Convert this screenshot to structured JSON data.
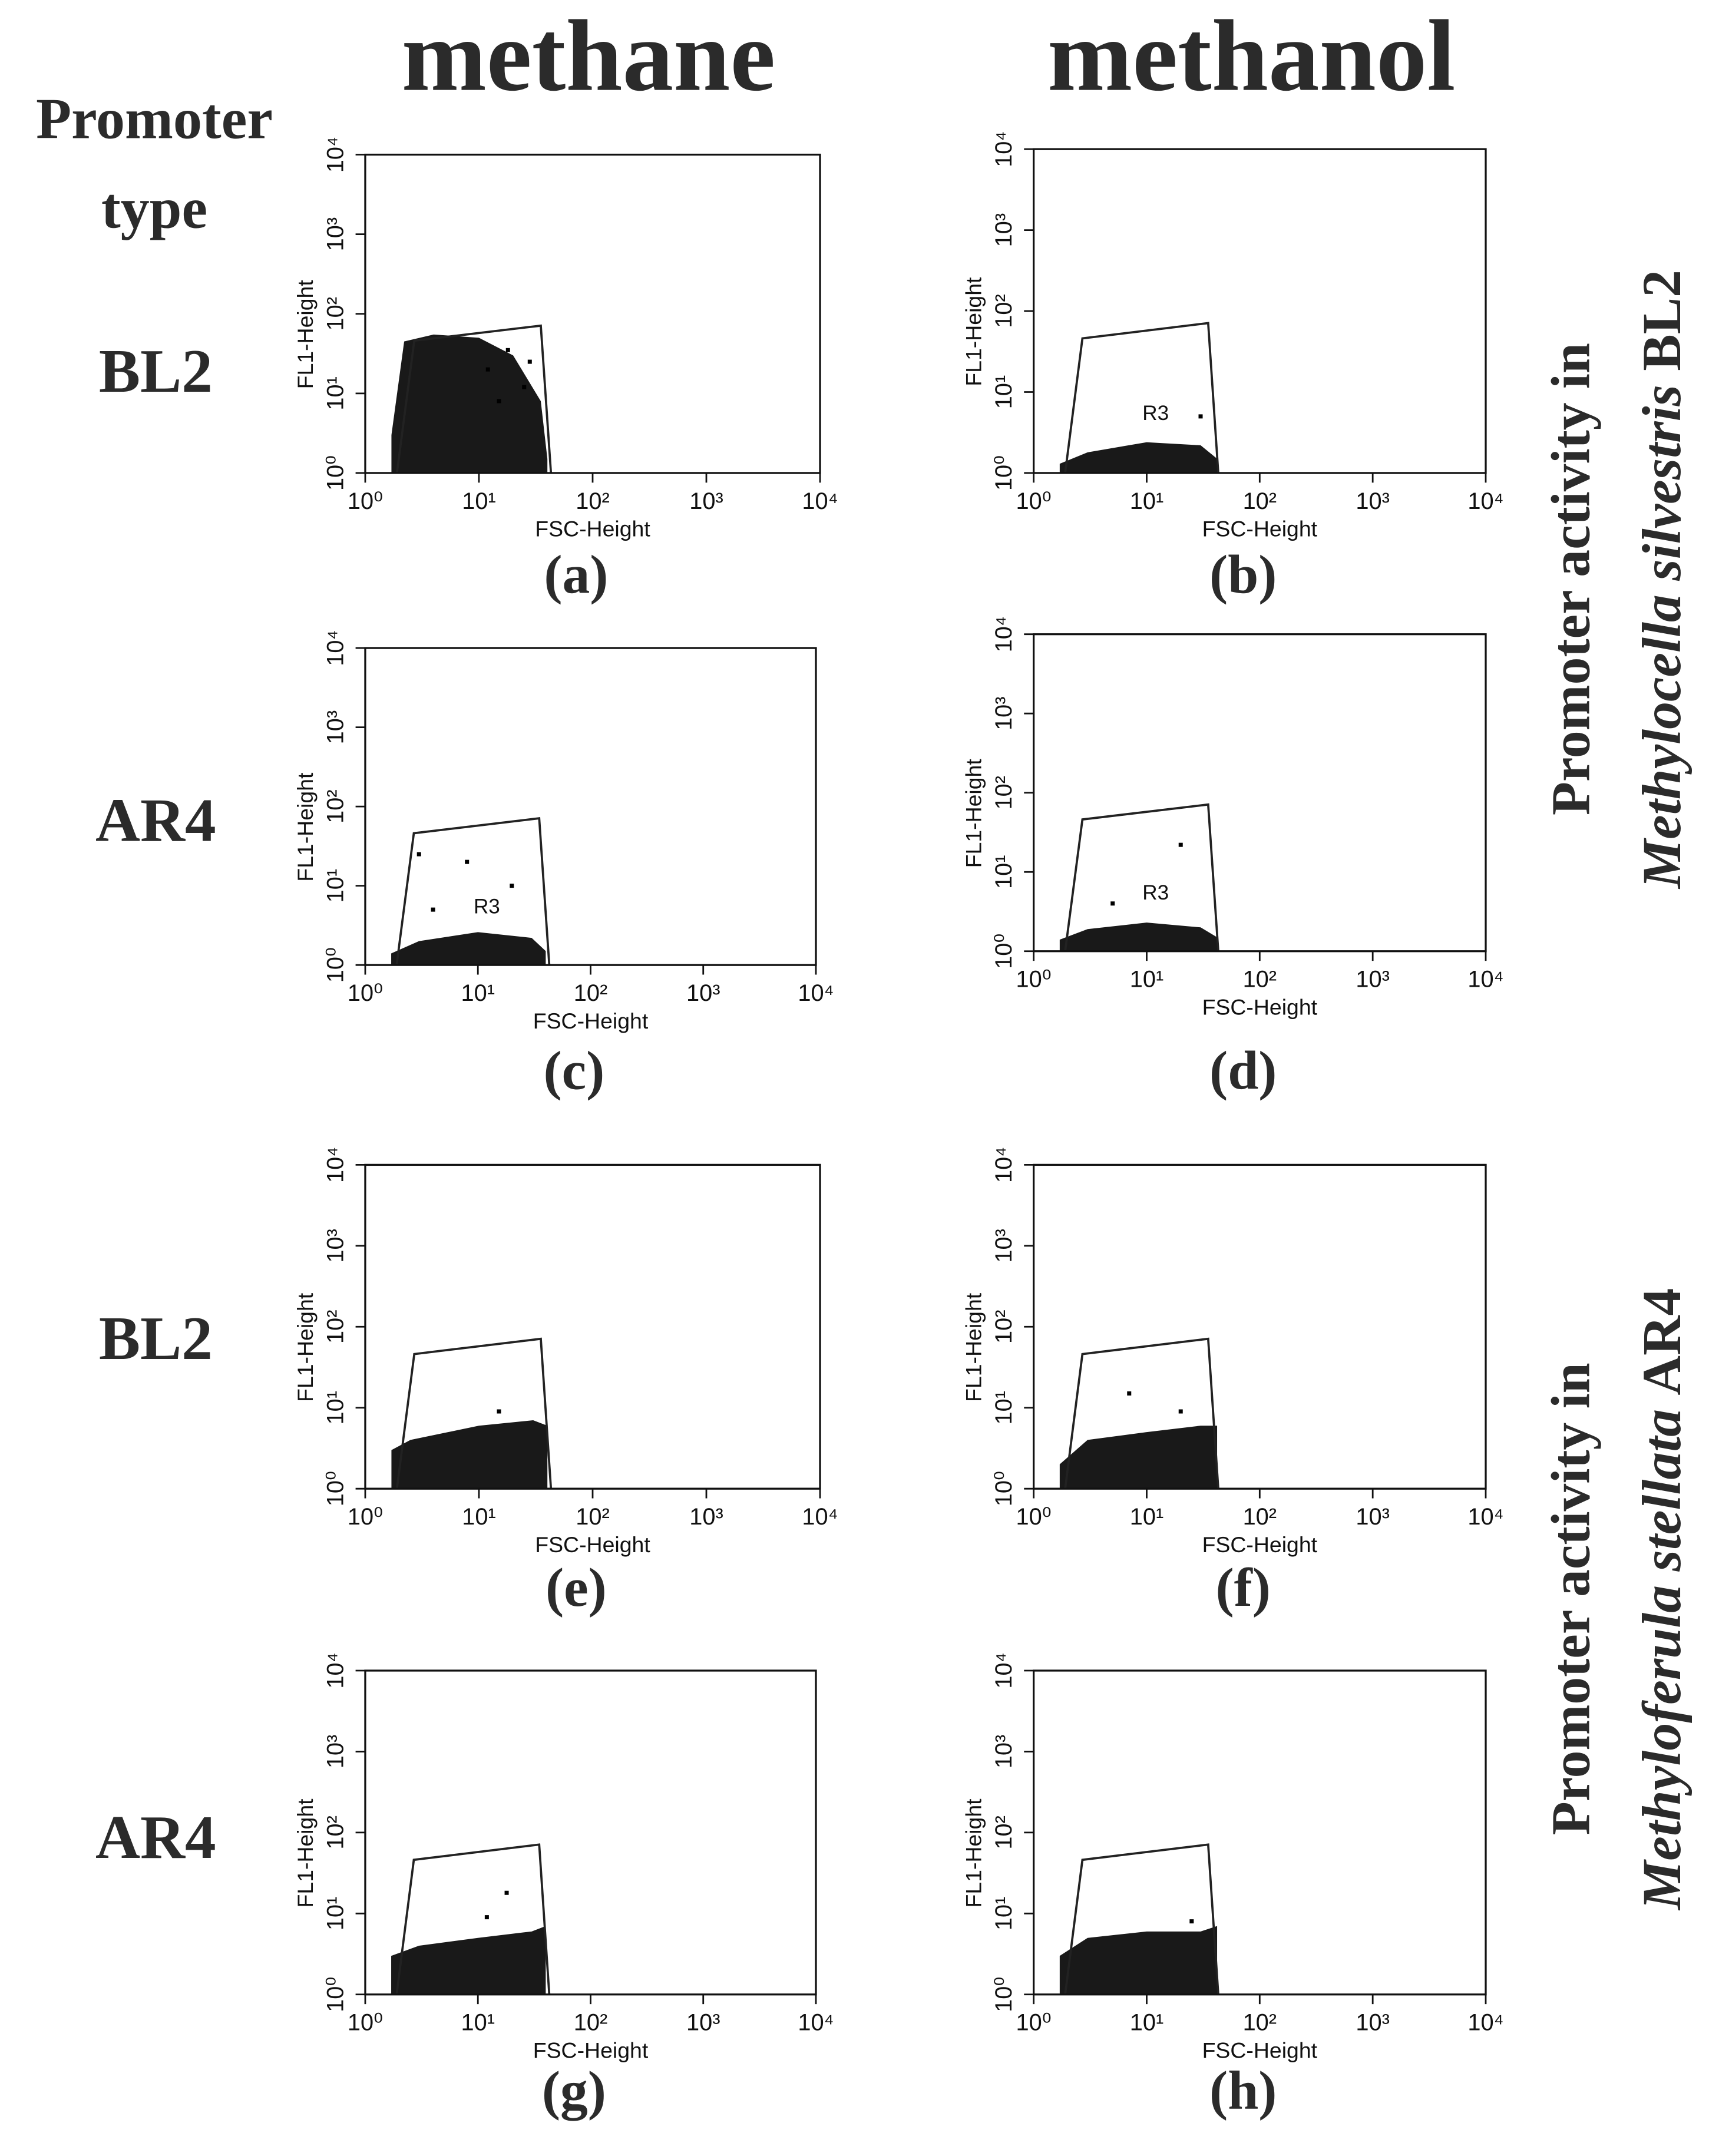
{
  "column_headers": [
    "methane",
    "methanol"
  ],
  "row_header": [
    "Promoter",
    "type"
  ],
  "row_labels": [
    "BL2",
    "AR4",
    "BL2",
    "AR4"
  ],
  "side_labels": [
    {
      "line1": "Promoter activity  in",
      "species": "Methylocella silvestris",
      "strain": "BL2"
    },
    {
      "line1": "Promoter activity  in",
      "species": "Methyloferula stellata",
      "strain": "AR4"
    }
  ],
  "chart_data": [
    {
      "type": "scatter",
      "panel": "(a)",
      "xlabel": "FSC-Height",
      "ylabel": "FL1-Height",
      "log": true,
      "xlim": [
        1,
        10000
      ],
      "ylim": [
        1,
        10000
      ],
      "xticks": [
        {
          "value": 1,
          "label": "10⁰"
        },
        {
          "value": 10,
          "label": "10¹"
        },
        {
          "value": 100,
          "label": "10²"
        },
        {
          "value": 1000,
          "label": "10³"
        },
        {
          "value": 10000,
          "label": "10⁴"
        }
      ],
      "yticks": [
        {
          "value": 1,
          "label": "10⁰"
        },
        {
          "value": 10,
          "label": "10¹"
        },
        {
          "value": 100,
          "label": "10²"
        },
        {
          "value": 1000,
          "label": "10³"
        },
        {
          "value": 10000,
          "label": "10⁴"
        }
      ],
      "gate": {
        "x": [
          1.9,
          2.7,
          35,
          43
        ],
        "y": [
          1,
          46,
          71,
          1
        ]
      },
      "envelope": {
        "x": [
          1.7,
          2.2,
          4,
          10,
          20,
          35,
          40
        ],
        "y": [
          3,
          45,
          55,
          50,
          30,
          8,
          1.5
        ]
      },
      "points": {
        "x": [
          12,
          18,
          25,
          15,
          28
        ],
        "y": [
          20,
          35,
          12,
          8,
          25
        ]
      },
      "color": "#000000"
    },
    {
      "type": "scatter",
      "panel": "(b)",
      "xlabel": "FSC-Height",
      "ylabel": "FL1-Height",
      "log": true,
      "xlim": [
        1,
        10000
      ],
      "ylim": [
        1,
        10000
      ],
      "xticks": [
        {
          "value": 1,
          "label": "10⁰"
        },
        {
          "value": 10,
          "label": "10¹"
        },
        {
          "value": 100,
          "label": "10²"
        },
        {
          "value": 1000,
          "label": "10³"
        },
        {
          "value": 10000,
          "label": "10⁴"
        }
      ],
      "yticks": [
        {
          "value": 1,
          "label": "10⁰"
        },
        {
          "value": 10,
          "label": "10¹"
        },
        {
          "value": 100,
          "label": "10²"
        },
        {
          "value": 1000,
          "label": "10³"
        },
        {
          "value": 10000,
          "label": "10⁴"
        }
      ],
      "gate": {
        "x": [
          1.9,
          2.7,
          35,
          43
        ],
        "y": [
          1,
          46,
          71,
          1
        ]
      },
      "region_label": "R3",
      "envelope": {
        "x": [
          1.7,
          3,
          10,
          30,
          42
        ],
        "y": [
          1.3,
          1.8,
          2.4,
          2.2,
          1.5
        ]
      },
      "points": {
        "x": [
          30
        ],
        "y": [
          5
        ]
      },
      "color": "#000000"
    },
    {
      "type": "scatter",
      "panel": "(c)",
      "xlabel": "FSC-Height",
      "ylabel": "FL1-Height",
      "log": true,
      "xlim": [
        1,
        10000
      ],
      "ylim": [
        1,
        10000
      ],
      "xticks": [
        {
          "value": 1,
          "label": "10⁰"
        },
        {
          "value": 10,
          "label": "10¹"
        },
        {
          "value": 100,
          "label": "10²"
        },
        {
          "value": 1000,
          "label": "10³"
        },
        {
          "value": 10000,
          "label": "10⁴"
        }
      ],
      "yticks": [
        {
          "value": 1,
          "label": "10⁰"
        },
        {
          "value": 10,
          "label": "10¹"
        },
        {
          "value": 100,
          "label": "10²"
        },
        {
          "value": 1000,
          "label": "10³"
        },
        {
          "value": 10000,
          "label": "10⁴"
        }
      ],
      "gate": {
        "x": [
          1.9,
          2.7,
          35,
          43
        ],
        "y": [
          1,
          46,
          71,
          1
        ]
      },
      "region_label": "R3",
      "envelope": {
        "x": [
          1.7,
          3,
          10,
          30,
          40
        ],
        "y": [
          1.4,
          2,
          2.6,
          2.2,
          1.5
        ]
      },
      "points": {
        "x": [
          8,
          20,
          4,
          3
        ],
        "y": [
          20,
          10,
          5,
          25
        ]
      },
      "color": "#000000"
    },
    {
      "type": "scatter",
      "panel": "(d)",
      "xlabel": "FSC-Height",
      "ylabel": "FL1-Height",
      "log": true,
      "xlim": [
        1,
        10000
      ],
      "ylim": [
        1,
        10000
      ],
      "xticks": [
        {
          "value": 1,
          "label": "10⁰"
        },
        {
          "value": 10,
          "label": "10¹"
        },
        {
          "value": 100,
          "label": "10²"
        },
        {
          "value": 1000,
          "label": "10³"
        },
        {
          "value": 10000,
          "label": "10⁴"
        }
      ],
      "yticks": [
        {
          "value": 1,
          "label": "10⁰"
        },
        {
          "value": 10,
          "label": "10¹"
        },
        {
          "value": 100,
          "label": "10²"
        },
        {
          "value": 1000,
          "label": "10³"
        },
        {
          "value": 10000,
          "label": "10⁴"
        }
      ],
      "gate": {
        "x": [
          1.9,
          2.7,
          35,
          43
        ],
        "y": [
          1,
          46,
          71,
          1
        ]
      },
      "region_label": "R3",
      "envelope": {
        "x": [
          1.7,
          3,
          10,
          30,
          42
        ],
        "y": [
          1.4,
          1.9,
          2.3,
          2,
          1.5
        ]
      },
      "points": {
        "x": [
          20,
          5
        ],
        "y": [
          22,
          4
        ]
      },
      "color": "#000000"
    },
    {
      "type": "scatter",
      "panel": "(e)",
      "xlabel": "FSC-Height",
      "ylabel": "FL1-Height",
      "log": true,
      "xlim": [
        1,
        10000
      ],
      "ylim": [
        1,
        10000
      ],
      "xticks": [
        {
          "value": 1,
          "label": "10⁰"
        },
        {
          "value": 10,
          "label": "10¹"
        },
        {
          "value": 100,
          "label": "10²"
        },
        {
          "value": 1000,
          "label": "10³"
        },
        {
          "value": 10000,
          "label": "10⁴"
        }
      ],
      "yticks": [
        {
          "value": 1,
          "label": "10⁰"
        },
        {
          "value": 10,
          "label": "10¹"
        },
        {
          "value": 100,
          "label": "10²"
        },
        {
          "value": 1000,
          "label": "10³"
        },
        {
          "value": 10000,
          "label": "10⁴"
        }
      ],
      "gate": {
        "x": [
          1.9,
          2.7,
          35,
          43
        ],
        "y": [
          1,
          46,
          71,
          1
        ]
      },
      "envelope": {
        "x": [
          1.7,
          2.5,
          10,
          30,
          40
        ],
        "y": [
          3,
          4,
          6,
          7,
          6
        ]
      },
      "points": {
        "x": [
          15
        ],
        "y": [
          9
        ]
      },
      "color": "#000000"
    },
    {
      "type": "scatter",
      "panel": "(f)",
      "xlabel": "FSC-Height",
      "ylabel": "FL1-Height",
      "log": true,
      "xlim": [
        1,
        10000
      ],
      "ylim": [
        1,
        10000
      ],
      "xticks": [
        {
          "value": 1,
          "label": "10⁰"
        },
        {
          "value": 10,
          "label": "10¹"
        },
        {
          "value": 100,
          "label": "10²"
        },
        {
          "value": 1000,
          "label": "10³"
        },
        {
          "value": 10000,
          "label": "10⁴"
        }
      ],
      "yticks": [
        {
          "value": 1,
          "label": "10⁰"
        },
        {
          "value": 10,
          "label": "10¹"
        },
        {
          "value": 100,
          "label": "10²"
        },
        {
          "value": 1000,
          "label": "10³"
        },
        {
          "value": 10000,
          "label": "10⁴"
        }
      ],
      "gate": {
        "x": [
          1.9,
          2.7,
          35,
          43
        ],
        "y": [
          1,
          46,
          71,
          1
        ]
      },
      "envelope": {
        "x": [
          1.7,
          3,
          10,
          30,
          42
        ],
        "y": [
          2,
          4,
          5,
          6,
          6
        ]
      },
      "points": {
        "x": [
          7,
          20
        ],
        "y": [
          15,
          9
        ]
      },
      "color": "#000000"
    },
    {
      "type": "scatter",
      "panel": "(g)",
      "xlabel": "FSC-Height",
      "ylabel": "FL1-Height",
      "log": true,
      "xlim": [
        1,
        10000
      ],
      "ylim": [
        1,
        10000
      ],
      "xticks": [
        {
          "value": 1,
          "label": "10⁰"
        },
        {
          "value": 10,
          "label": "10¹"
        },
        {
          "value": 100,
          "label": "10²"
        },
        {
          "value": 1000,
          "label": "10³"
        },
        {
          "value": 10000,
          "label": "10⁴"
        }
      ],
      "yticks": [
        {
          "value": 1,
          "label": "10⁰"
        },
        {
          "value": 10,
          "label": "10¹"
        },
        {
          "value": 100,
          "label": "10²"
        },
        {
          "value": 1000,
          "label": "10³"
        },
        {
          "value": 10000,
          "label": "10⁴"
        }
      ],
      "gate": {
        "x": [
          1.9,
          2.7,
          35,
          43
        ],
        "y": [
          1,
          46,
          71,
          1
        ]
      },
      "envelope": {
        "x": [
          1.7,
          3,
          10,
          30,
          40
        ],
        "y": [
          3,
          4,
          5,
          6,
          7
        ]
      },
      "points": {
        "x": [
          18,
          12
        ],
        "y": [
          18,
          9
        ]
      },
      "color": "#000000"
    },
    {
      "type": "scatter",
      "panel": "(h)",
      "xlabel": "FSC-Height",
      "ylabel": "FL1-Height",
      "log": true,
      "xlim": [
        1,
        10000
      ],
      "ylim": [
        1,
        10000
      ],
      "xticks": [
        {
          "value": 1,
          "label": "10⁰"
        },
        {
          "value": 10,
          "label": "10¹"
        },
        {
          "value": 100,
          "label": "10²"
        },
        {
          "value": 1000,
          "label": "10³"
        },
        {
          "value": 10000,
          "label": "10⁴"
        }
      ],
      "yticks": [
        {
          "value": 1,
          "label": "10⁰"
        },
        {
          "value": 10,
          "label": "10¹"
        },
        {
          "value": 100,
          "label": "10²"
        },
        {
          "value": 1000,
          "label": "10³"
        },
        {
          "value": 10000,
          "label": "10⁴"
        }
      ],
      "gate": {
        "x": [
          1.9,
          2.7,
          35,
          43
        ],
        "y": [
          1,
          46,
          71,
          1
        ]
      },
      "envelope": {
        "x": [
          1.7,
          3,
          10,
          30,
          42
        ],
        "y": [
          3,
          5,
          6,
          6,
          7
        ]
      },
      "points": {
        "x": [
          25
        ],
        "y": [
          8
        ]
      },
      "color": "#000000"
    }
  ]
}
